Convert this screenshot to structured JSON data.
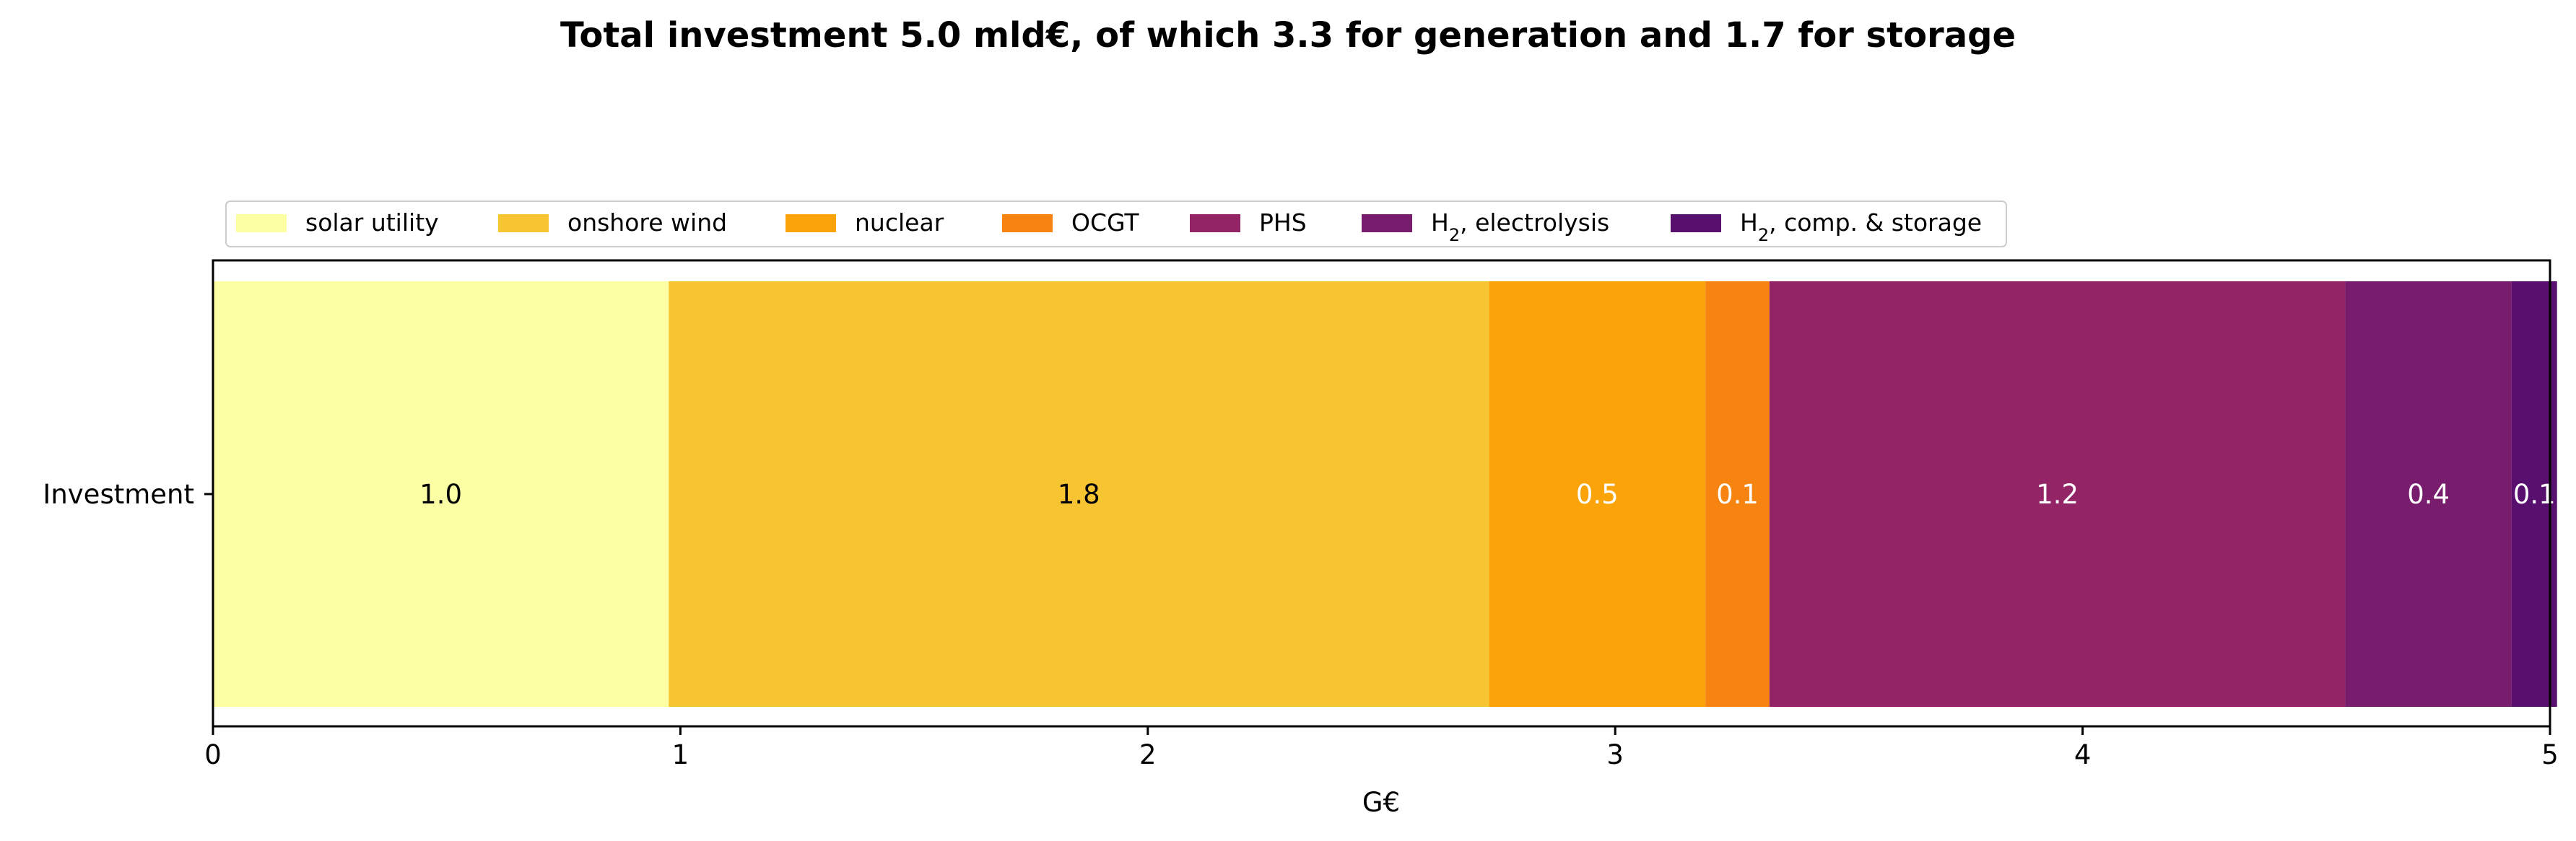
{
  "chart_data": {
    "type": "bar",
    "orientation": "horizontal",
    "stacked": true,
    "title": "Total investment 5.0 mld€, of which 3.3 for generation and 1.7 for storage",
    "xlabel": "G€",
    "categories": [
      "Investment"
    ],
    "xlim": [
      0,
      5.0
    ],
    "xticks": [
      "0",
      "1",
      "2",
      "3",
      "4",
      "5"
    ],
    "legend_position": "top-left, above plot",
    "grid": false,
    "series": [
      {
        "name": "solar utility",
        "legend_main": "solar utility",
        "legend_sub": "",
        "legend_rest": "",
        "value": 0.975,
        "label": "1.0",
        "color": "#fcffa4",
        "label_color": "#000000"
      },
      {
        "name": "onshore wind",
        "legend_main": "onshore wind",
        "legend_sub": "",
        "legend_rest": "",
        "value": 1.755,
        "label": "1.8",
        "color": "#f8c532",
        "label_color": "#000000"
      },
      {
        "name": "nuclear",
        "legend_main": "nuclear",
        "legend_sub": "",
        "legend_rest": "",
        "value": 0.463,
        "label": "0.5",
        "color": "#fba40a",
        "label_color": "#ffffff"
      },
      {
        "name": "OCGT",
        "legend_main": "OCGT",
        "legend_sub": "",
        "legend_rest": "",
        "value": 0.137,
        "label": "0.1",
        "color": "#f78311",
        "label_color": "#ffffff"
      },
      {
        "name": "PHS",
        "legend_main": "PHS",
        "legend_sub": "",
        "legend_rest": "",
        "value": 1.232,
        "label": "1.2",
        "color": "#932567",
        "label_color": "#ffffff"
      },
      {
        "name": "H2, electrolysis",
        "legend_main": "H",
        "legend_sub": "2",
        "legend_rest": ", electrolysis",
        "value": 0.356,
        "label": "0.4",
        "color": "#781c6d",
        "label_color": "#ffffff"
      },
      {
        "name": "H2, comp. & storage",
        "legend_main": "H",
        "legend_sub": "2",
        "legend_rest": ", comp. & storage",
        "value": 0.097,
        "label": "0.1",
        "color": "#57106e",
        "label_color": "#ffffff"
      }
    ]
  }
}
